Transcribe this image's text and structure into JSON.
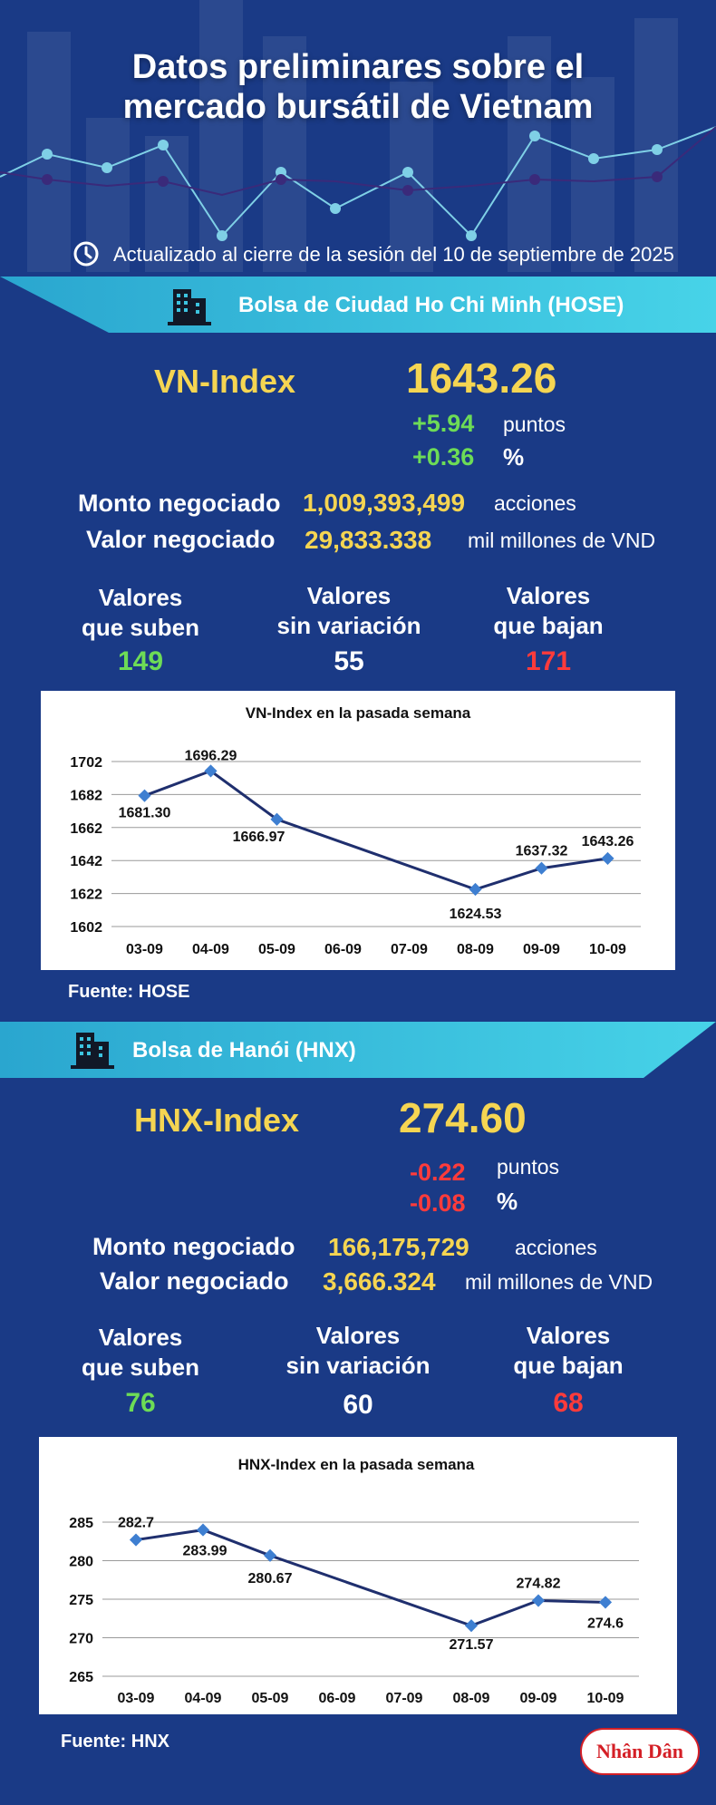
{
  "header": {
    "title_line1": "Datos preliminares sobre el",
    "title_line2": "mercado bursátil de Vietnam",
    "updated": "Actualizado al cierre de la sesión del 10 de septiembre de 2025"
  },
  "hose": {
    "banner": "Bolsa de Ciudad Ho Chi Minh (HOSE)",
    "index_name": "VN-Index",
    "index_value": "1643.26",
    "change_points": "+5.94",
    "points_label": "puntos",
    "change_percent": "+0.36",
    "percent_label": "%",
    "volume_label": "Monto negociado",
    "volume_value": "1,009,393,499",
    "volume_unit": "acciones",
    "value_label": "Valor negociado",
    "value_value": "29,833.338",
    "value_unit": "mil millones de VND",
    "up_l1": "Valores",
    "up_l2": "que suben",
    "up_count": "149",
    "flat_l1": "Valores",
    "flat_l2": "sin variación",
    "flat_count": "55",
    "down_l1": "Valores",
    "down_l2": "que bajan",
    "down_count": "171",
    "source": "Fuente: HOSE"
  },
  "hnx": {
    "banner": "Bolsa de Hanói (HNX)",
    "index_name": "HNX-Index",
    "index_value": "274.60",
    "change_points": "-0.22",
    "points_label": "puntos",
    "change_percent": "-0.08",
    "percent_label": "%",
    "volume_label": "Monto negociado",
    "volume_value": "166,175,729",
    "volume_unit": "acciones",
    "value_label": "Valor negociado",
    "value_value": "3,666.324",
    "value_unit": "mil millones de VND",
    "up_l1": "Valores",
    "up_l2": "que suben",
    "up_count": "76",
    "flat_l1": "Valores",
    "flat_l2": "sin variación",
    "flat_count": "60",
    "down_l1": "Valores",
    "down_l2": "que bajan",
    "down_count": "68",
    "source": "Fuente:  HNX"
  },
  "logo": {
    "text": "Nhân Dân"
  },
  "colors": {
    "background": "#1a3a86",
    "gold": "#f5d552",
    "up": "#6ddc56",
    "down": "#ff3b3b",
    "line": "#1f2f6e",
    "marker": "#3e7fd1",
    "banner": "#3cc4e0"
  },
  "icons": [
    "clock-icon",
    "building-icon"
  ],
  "chart_data": [
    {
      "type": "line",
      "title": "VN-Index en la pasada semana",
      "categories": [
        "03-09",
        "04-09",
        "05-09",
        "06-09",
        "07-09",
        "08-09",
        "09-09",
        "10-09"
      ],
      "points": [
        {
          "x": "03-09",
          "y": 1681.3,
          "label": "1681.30"
        },
        {
          "x": "04-09",
          "y": 1696.29,
          "label": "1696.29"
        },
        {
          "x": "05-09",
          "y": 1666.97,
          "label": "1666.97"
        },
        {
          "x": "08-09",
          "y": 1624.53,
          "label": "1624.53"
        },
        {
          "x": "09-09",
          "y": 1637.32,
          "label": "1637.32"
        },
        {
          "x": "10-09",
          "y": 1643.26,
          "label": "1643.26"
        }
      ],
      "yticks": [
        1602,
        1622,
        1642,
        1662,
        1682,
        1702
      ],
      "ylim": [
        1602,
        1702
      ],
      "grid": true
    },
    {
      "type": "line",
      "title": "HNX-Index en la pasada semana",
      "categories": [
        "03-09",
        "04-09",
        "05-09",
        "06-09",
        "07-09",
        "08-09",
        "09-09",
        "10-09"
      ],
      "points": [
        {
          "x": "03-09",
          "y": 282.7,
          "label": "282.7"
        },
        {
          "x": "04-09",
          "y": 283.99,
          "label": "283.99"
        },
        {
          "x": "05-09",
          "y": 280.67,
          "label": "280.67"
        },
        {
          "x": "08-09",
          "y": 271.57,
          "label": "271.57"
        },
        {
          "x": "09-09",
          "y": 274.82,
          "label": "274.82"
        },
        {
          "x": "10-09",
          "y": 274.6,
          "label": "274.6"
        }
      ],
      "yticks": [
        265,
        270,
        275,
        280,
        285
      ],
      "ylim": [
        265,
        285
      ],
      "grid": true
    }
  ]
}
